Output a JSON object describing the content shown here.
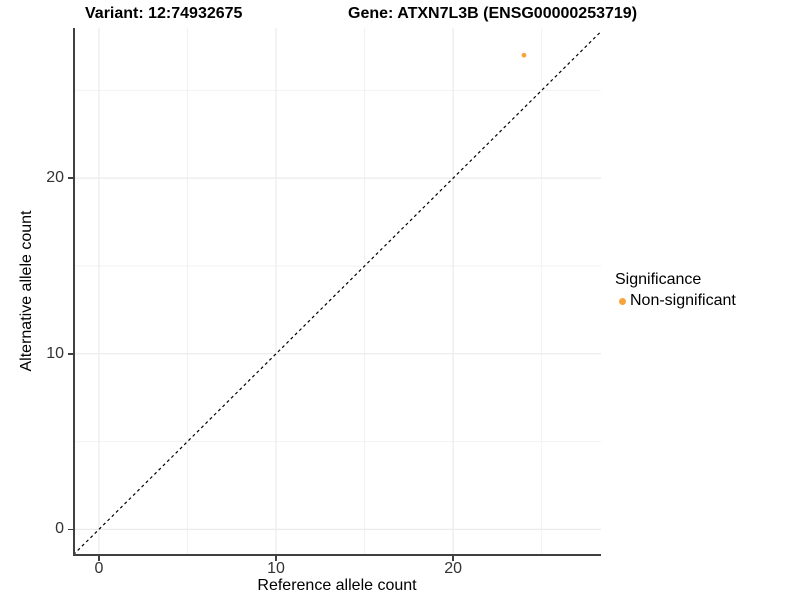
{
  "chart_data": {
    "type": "scatter",
    "title_left": "Variant: 12:74932675",
    "title_right": "Gene: ATXN7L3B (ENSG00000253719)",
    "xlabel": "Reference allele count",
    "ylabel": "Alternative allele count",
    "xlim": [
      -1.35,
      28.35
    ],
    "ylim": [
      -1.4,
      28.55
    ],
    "x_major_ticks": [
      0,
      10,
      20
    ],
    "y_major_ticks": [
      0,
      10,
      20
    ],
    "x_minor_gridlines": [
      5,
      15,
      25
    ],
    "y_minor_gridlines": [
      5,
      15,
      25
    ],
    "grid": true,
    "points": [
      {
        "x": 24,
        "y": 27,
        "series": "Non-significant"
      }
    ],
    "reference_line": {
      "equation": "y = x",
      "style": "dashed",
      "color": "#000000"
    },
    "legend": {
      "title": "Significance",
      "position": "right",
      "items": [
        {
          "label": "Non-significant",
          "color": "#F9A43B"
        }
      ]
    },
    "colors": {
      "point": "#F9A43B",
      "major_grid": "#EBEBEB",
      "minor_grid": "#F2F2F2",
      "axis_line": "#404040",
      "tick_text": "#333333",
      "title_text": "#000000"
    }
  }
}
